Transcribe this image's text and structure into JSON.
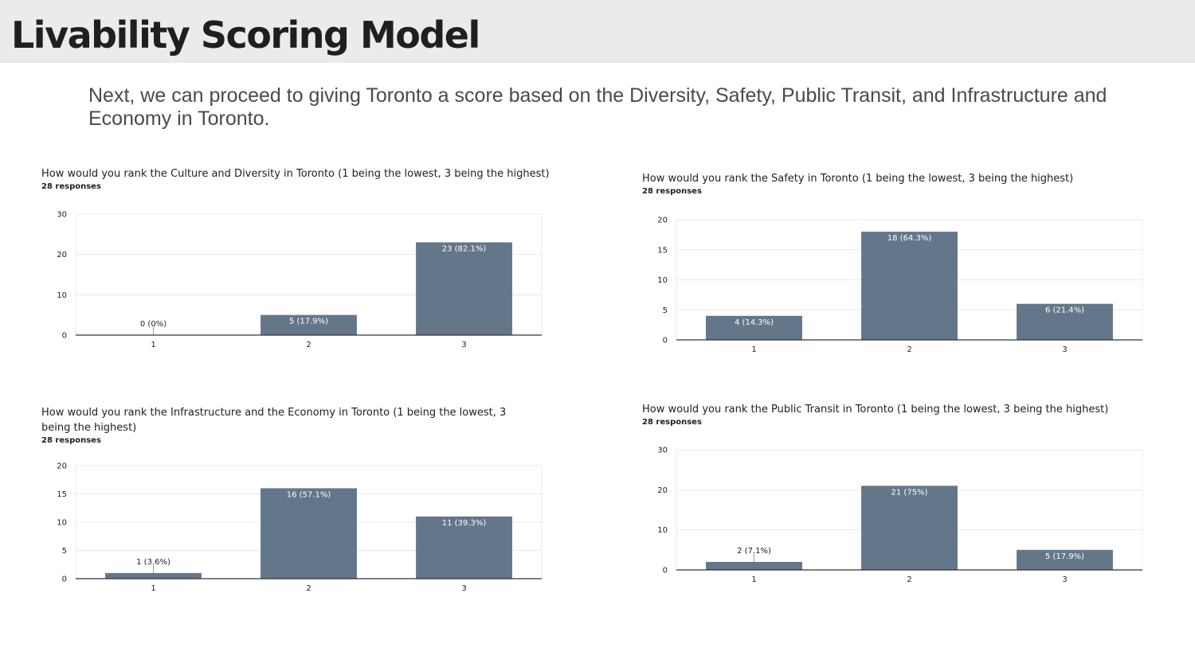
{
  "slide": {
    "title": "Livability Scoring Model",
    "intro": "Next, we can proceed to giving Toronto a score based on the Diversity, Safety, Public Transit, and Infrastructure and Economy in Toronto."
  },
  "colors": {
    "bar": "#64778a",
    "grid": "#e8e8e8",
    "axis": "#333333",
    "label_dark": "#202124",
    "label_light": "#ffffff"
  },
  "chart_data": [
    {
      "type": "bar",
      "title": "How would you rank the Culture and Diversity in Toronto (1 being the lowest, 3 being the highest)",
      "subtitle": "28 responses",
      "categories": [
        "1",
        "2",
        "3"
      ],
      "values": [
        0,
        5,
        23
      ],
      "data_labels": [
        "0 (0%)",
        "5 (17.9%)",
        "23 (82.1%)"
      ],
      "yticks": [
        0,
        10,
        20,
        30
      ],
      "ylim": [
        0,
        30
      ],
      "grid": true
    },
    {
      "type": "bar",
      "title": "How would you rank the Safety in Toronto (1 being the lowest, 3 being the highest)",
      "subtitle": "28 responses",
      "categories": [
        "1",
        "2",
        "3"
      ],
      "values": [
        4,
        18,
        6
      ],
      "data_labels": [
        "4 (14.3%)",
        "18 (64.3%)",
        "6 (21.4%)"
      ],
      "yticks": [
        0,
        5,
        10,
        15,
        20
      ],
      "ylim": [
        0,
        20
      ],
      "grid": true
    },
    {
      "type": "bar",
      "title": "How would you rank the Infrastructure and the Economy in Toronto (1 being the lowest, 3 being the highest)",
      "subtitle": "28 responses",
      "categories": [
        "1",
        "2",
        "3"
      ],
      "values": [
        1,
        16,
        11
      ],
      "data_labels": [
        "1 (3.6%)",
        "16 (57.1%)",
        "11 (39.3%)"
      ],
      "yticks": [
        0,
        5,
        10,
        15,
        20
      ],
      "ylim": [
        0,
        20
      ],
      "grid": true
    },
    {
      "type": "bar",
      "title": "How would you rank the Public Transit in Toronto (1 being the lowest, 3 being the highest)",
      "subtitle": "28 responses",
      "categories": [
        "1",
        "2",
        "3"
      ],
      "values": [
        2,
        21,
        5
      ],
      "data_labels": [
        "2 (7.1%)",
        "21 (75%)",
        "5 (17.9%)"
      ],
      "yticks": [
        0,
        10,
        20,
        30
      ],
      "ylim": [
        0,
        30
      ],
      "grid": true
    }
  ]
}
